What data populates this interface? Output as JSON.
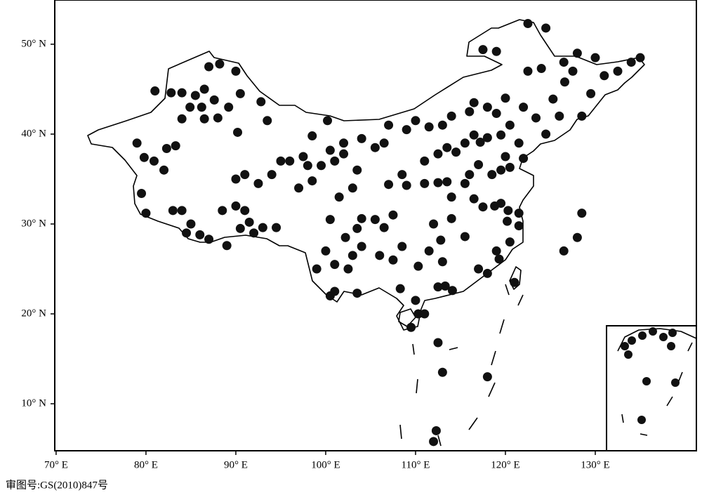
{
  "map": {
    "caption": "审图号:GS(2010)847号",
    "xlim": [
      69.85,
      141.25
    ],
    "ylim": [
      4.77,
      54.92
    ],
    "xticks": [
      {
        "value": 70,
        "label": "70° E"
      },
      {
        "value": 80,
        "label": "80° E"
      },
      {
        "value": 90,
        "label": "90° E"
      },
      {
        "value": 100,
        "label": "100° E"
      },
      {
        "value": 110,
        "label": "110° E"
      },
      {
        "value": 120,
        "label": "120° E"
      },
      {
        "value": 130,
        "label": "130° E"
      }
    ],
    "yticks": [
      {
        "value": 10,
        "label": "10° N"
      },
      {
        "value": 20,
        "label": "20° N"
      },
      {
        "value": 30,
        "label": "30° N"
      },
      {
        "value": 40,
        "label": "40° N"
      },
      {
        "value": 50,
        "label": "50° N"
      }
    ],
    "stations": {
      "lon": [
        79.0,
        79.8,
        80.9,
        82.0,
        82.3,
        83.3,
        81.0,
        82.8,
        84.0,
        85.5,
        86.5,
        87.0,
        88.2,
        90.0,
        84.9,
        86.2,
        87.6,
        89.2,
        90.5,
        92.8,
        93.5,
        88.0,
        90.2,
        86.5,
        84.0,
        79.5,
        80.0,
        83.0,
        84.0,
        85.0,
        84.5,
        86.0,
        87.0,
        88.5,
        89.0,
        90.0,
        91.0,
        91.5,
        90.5,
        92.0,
        93.0,
        94.5,
        90.0,
        91.0,
        92.5,
        94.0,
        95.0,
        96.0,
        97.5,
        98.0,
        97.0,
        98.5,
        99.5,
        101.0,
        100.5,
        102.0,
        103.5,
        103.0,
        101.5,
        100.5,
        100.0,
        99.0,
        101.0,
        102.5,
        103.0,
        104.0,
        102.2,
        103.5,
        104.0,
        105.5,
        106.5,
        107.5,
        106.0,
        107.5,
        108.5,
        100.5,
        101.0,
        103.5,
        98.5,
        100.2,
        102.0,
        104.0,
        105.5,
        106.5,
        107.0,
        109.0,
        110.0,
        111.5,
        113.0,
        114.0,
        116.0,
        116.5,
        118.0,
        120.0,
        122.0,
        119.0,
        120.5,
        112.5,
        111.0,
        113.5,
        114.5,
        115.5,
        116.5,
        117.2,
        118.0,
        119.5,
        121.5,
        120.0,
        122.0,
        117.0,
        116.0,
        118.5,
        119.5,
        120.5,
        115.5,
        113.5,
        112.5,
        111.0,
        109.0,
        107.0,
        108.5,
        114.0,
        116.5,
        117.5,
        118.8,
        119.5,
        120.3,
        121.5,
        120.2,
        121.5,
        120.5,
        119.0,
        119.3,
        118.0,
        117.0,
        115.5,
        114.0,
        112.0,
        112.8,
        111.5,
        113.0,
        113.3,
        114.1,
        112.5,
        110.3,
        108.3,
        110.0,
        110.3,
        109.5,
        111.0,
        112.5,
        123.4,
        125.3,
        126.6,
        124.0,
        122.5,
        126.5,
        127.5,
        129.5,
        131.0,
        132.5,
        134.0,
        135.0,
        130.0,
        128.0,
        124.5,
        122.5,
        117.5,
        119.0,
        128.5,
        126.0,
        124.5,
        121.0,
        126.5,
        128.5,
        128.0,
        112.3,
        112.0,
        113.0,
        118.0
      ],
      "lat": [
        39.0,
        37.4,
        37.0,
        36.0,
        38.4,
        38.7,
        44.8,
        44.6,
        44.6,
        44.3,
        45.0,
        47.5,
        47.8,
        47.0,
        43.0,
        43.0,
        43.8,
        43.0,
        44.5,
        43.6,
        41.5,
        41.8,
        40.2,
        41.7,
        41.7,
        33.4,
        31.2,
        31.5,
        31.5,
        30.0,
        29.0,
        28.8,
        28.3,
        31.5,
        27.6,
        32.0,
        31.5,
        30.2,
        29.5,
        29.0,
        29.6,
        29.6,
        35.0,
        35.5,
        34.5,
        35.5,
        37.0,
        37.0,
        37.5,
        36.5,
        34.0,
        34.8,
        36.5,
        37.0,
        38.2,
        37.8,
        36.0,
        34.0,
        33.0,
        30.5,
        27.0,
        25.0,
        25.5,
        25.0,
        26.5,
        27.5,
        28.5,
        29.5,
        30.6,
        30.5,
        29.6,
        31.0,
        26.5,
        26.0,
        27.5,
        22.0,
        22.5,
        22.3,
        39.8,
        41.5,
        39.0,
        39.5,
        38.5,
        39.0,
        41.0,
        40.5,
        41.5,
        40.8,
        41.0,
        42.0,
        42.5,
        43.5,
        43.0,
        44.0,
        43.0,
        42.3,
        41.0,
        37.8,
        37.0,
        38.5,
        38.0,
        39.0,
        39.9,
        39.1,
        39.6,
        39.9,
        39.0,
        37.5,
        37.3,
        36.6,
        35.5,
        35.5,
        36.0,
        36.3,
        34.5,
        34.7,
        34.6,
        34.5,
        34.3,
        34.4,
        35.5,
        33.0,
        32.8,
        31.9,
        32.0,
        32.3,
        31.5,
        31.2,
        30.3,
        29.8,
        28.0,
        27.0,
        26.1,
        24.5,
        25.0,
        28.6,
        30.6,
        30.0,
        28.2,
        27.0,
        25.8,
        23.1,
        22.6,
        23.0,
        25.3,
        22.8,
        21.5,
        20.0,
        18.5,
        20.0,
        16.8,
        41.8,
        43.9,
        45.8,
        47.3,
        47.0,
        48.0,
        47.0,
        44.5,
        46.5,
        47.0,
        48.0,
        48.5,
        48.5,
        49.0,
        51.8,
        52.3,
        49.4,
        49.2,
        42.0,
        42.0,
        40.0,
        23.5,
        27.0,
        31.2,
        28.5,
        7.0,
        5.8,
        13.5,
        13.0
      ]
    }
  }
}
